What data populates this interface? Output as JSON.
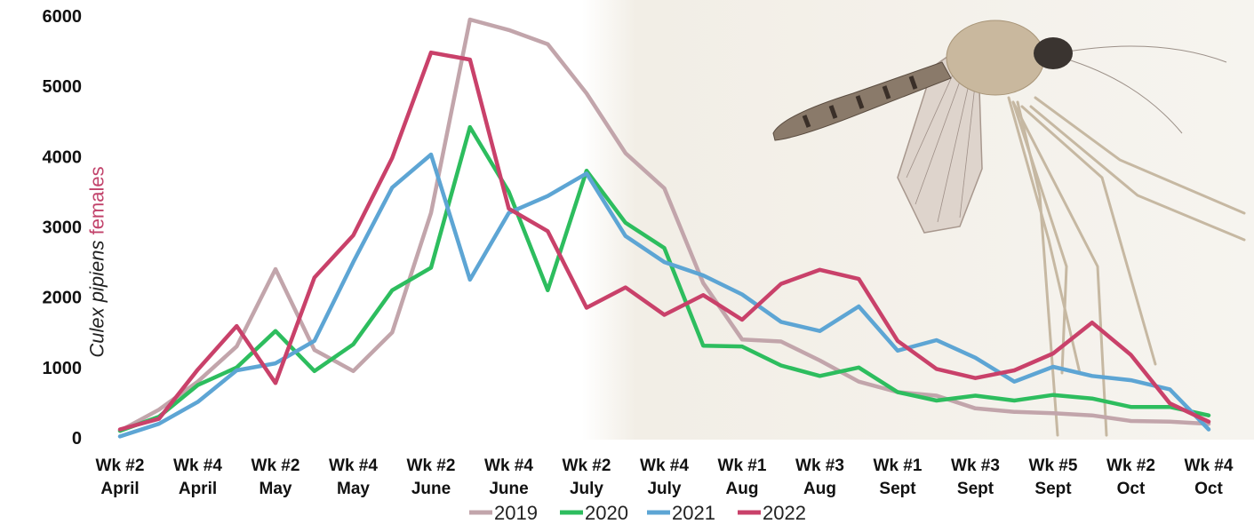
{
  "chart_data": {
    "type": "line",
    "ylabel_species": "Culex pipiens",
    "ylabel_rest": "females",
    "ylim": [
      0,
      6000
    ],
    "yticks": [
      0,
      1000,
      2000,
      3000,
      4000,
      5000,
      6000
    ],
    "grid": false,
    "legend_position": "bottom",
    "x_tick_labels": [
      [
        "Wk #2",
        "April"
      ],
      [
        "Wk #4",
        "April"
      ],
      [
        "Wk #2",
        "May"
      ],
      [
        "Wk #4",
        "May"
      ],
      [
        "Wk #2",
        "June"
      ],
      [
        "Wk #4",
        "June"
      ],
      [
        "Wk #2",
        "July"
      ],
      [
        "Wk #4",
        "July"
      ],
      [
        "Wk #1",
        "Aug"
      ],
      [
        "Wk #3",
        "Aug"
      ],
      [
        "Wk #1",
        "Sept"
      ],
      [
        "Wk #3",
        "Sept"
      ],
      [
        "Wk #5",
        "Sept"
      ],
      [
        "Wk #2",
        "Oct"
      ],
      [
        "Wk #4",
        "Oct"
      ]
    ],
    "series": [
      {
        "name": "2019",
        "color": "#c2a5ab",
        "values": [
          100,
          400,
          800,
          1300,
          2400,
          1250,
          950,
          1500,
          3200,
          5950,
          5800,
          5600,
          4900,
          4050,
          3550,
          2200,
          1400,
          1370,
          1100,
          800,
          650,
          600,
          420,
          370,
          350,
          320,
          240,
          230,
          200
        ]
      },
      {
        "name": "2020",
        "color": "#2dbd5e",
        "values": [
          100,
          300,
          750,
          1000,
          1520,
          950,
          1330,
          2100,
          2420,
          4420,
          3500,
          2100,
          3800,
          3060,
          2700,
          1310,
          1300,
          1030,
          880,
          1000,
          650,
          530,
          600,
          530,
          610,
          560,
          440,
          440,
          320
        ]
      },
      {
        "name": "2021",
        "color": "#5da5d4",
        "values": [
          20,
          200,
          510,
          960,
          1060,
          1380,
          2500,
          3560,
          4030,
          2250,
          3200,
          3440,
          3760,
          2870,
          2500,
          2310,
          2040,
          1650,
          1520,
          1870,
          1240,
          1390,
          1140,
          800,
          1010,
          880,
          820,
          690,
          120
        ]
      },
      {
        "name": "2022",
        "color": "#c9416a",
        "values": [
          120,
          270,
          970,
          1590,
          780,
          2280,
          2880,
          3980,
          5480,
          5380,
          3260,
          2940,
          1850,
          2140,
          1750,
          2030,
          1680,
          2190,
          2390,
          2260,
          1380,
          980,
          850,
          960,
          1200,
          1640,
          1180,
          490,
          230
        ]
      }
    ]
  }
}
